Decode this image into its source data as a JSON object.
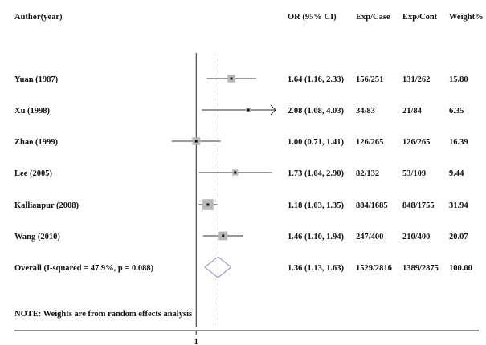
{
  "chart_data": {
    "type": "forest",
    "headers": {
      "study": "Author(year)",
      "or": "OR (95% CI)",
      "exp_case": "Exp/Case",
      "exp_cont": "Exp/Cont",
      "weight": "Weight%"
    },
    "studies": [
      {
        "label": "Yuan (1987)",
        "or": 1.64,
        "lo": 1.16,
        "hi": 2.33,
        "or_text": "1.64 (1.16, 2.33)",
        "exp_case": "156/251",
        "exp_cont": "131/262",
        "weight": 15.8,
        "weight_text": "15.80"
      },
      {
        "label": "Xu (1998)",
        "or": 2.08,
        "lo": 1.08,
        "hi": 4.03,
        "or_text": "2.08 (1.08, 4.03)",
        "exp_case": "34/83",
        "exp_cont": "21/84",
        "weight": 6.35,
        "weight_text": "6.35"
      },
      {
        "label": "Zhao (1999)",
        "or": 1.0,
        "lo": 0.71,
        "hi": 1.41,
        "or_text": "1.00 (0.71, 1.41)",
        "exp_case": "126/265",
        "exp_cont": "126/265",
        "weight": 16.39,
        "weight_text": "16.39"
      },
      {
        "label": "Lee (2005)",
        "or": 1.73,
        "lo": 1.04,
        "hi": 2.9,
        "or_text": "1.73 (1.04, 2.90)",
        "exp_case": "82/132",
        "exp_cont": "53/109",
        "weight": 9.44,
        "weight_text": "9.44"
      },
      {
        "label": "Kallianpur (2008)",
        "or": 1.18,
        "lo": 1.03,
        "hi": 1.35,
        "or_text": "1.18 (1.03, 1.35)",
        "exp_case": "884/1685",
        "exp_cont": "848/1755",
        "weight": 31.94,
        "weight_text": "31.94"
      },
      {
        "label": "Wang (2010)",
        "or": 1.46,
        "lo": 1.1,
        "hi": 1.94,
        "or_text": "1.46 (1.10, 1.94)",
        "exp_case": "247/400",
        "exp_cont": "210/400",
        "weight": 20.07,
        "weight_text": "20.07"
      }
    ],
    "overall": {
      "label": "Overall  (I-squared = 47.9%, p = 0.088)",
      "or": 1.36,
      "lo": 1.13,
      "hi": 1.63,
      "or_text": "1.36 (1.13, 1.63)",
      "exp_case": "1529/2816",
      "exp_cont": "1389/2875",
      "weight_text": "100.00"
    },
    "note": "NOTE: Weights are from random effects analysis",
    "null_value": 1,
    "x_tick_label": "1",
    "x_scale": "log",
    "x_display_range": [
      0.58,
      3.05
    ],
    "colors": {
      "diamond": "#8c8cbf",
      "null_line": "#222222",
      "overall_line": "#b0b0b0",
      "weight_box": "#b8b8b8",
      "ci_line": "#333333"
    }
  }
}
